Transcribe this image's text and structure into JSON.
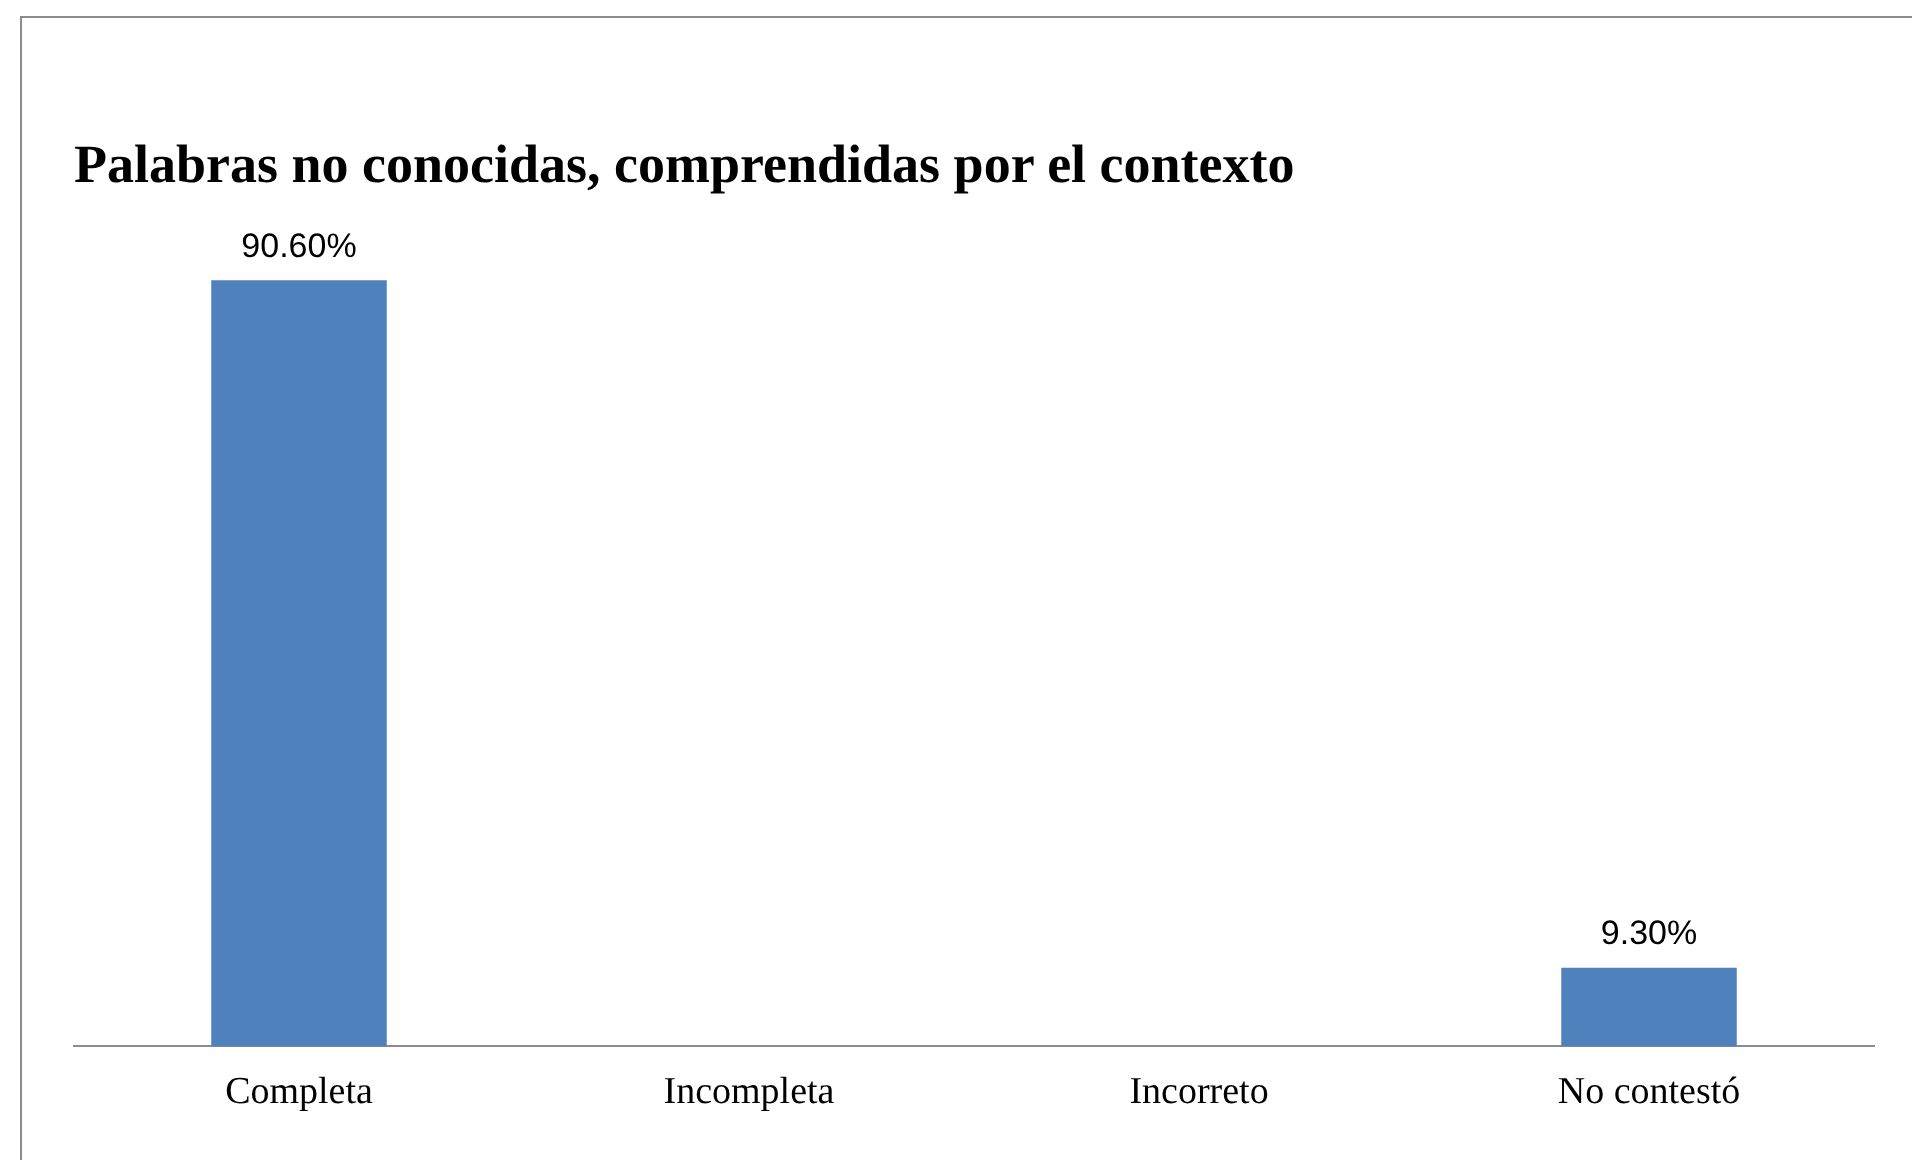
{
  "chart_data": {
    "type": "bar",
    "title": "Palabras no conocidas, comprendidas por el contexto",
    "categories": [
      "Completa",
      "Incompleta",
      "Incorreto",
      "No contestó"
    ],
    "values": [
      90.6,
      null,
      null,
      9.3
    ],
    "value_labels": [
      "90.60%",
      null,
      null,
      "9.30%"
    ],
    "color": "#4f81bd",
    "grid": false,
    "legend": false
  }
}
